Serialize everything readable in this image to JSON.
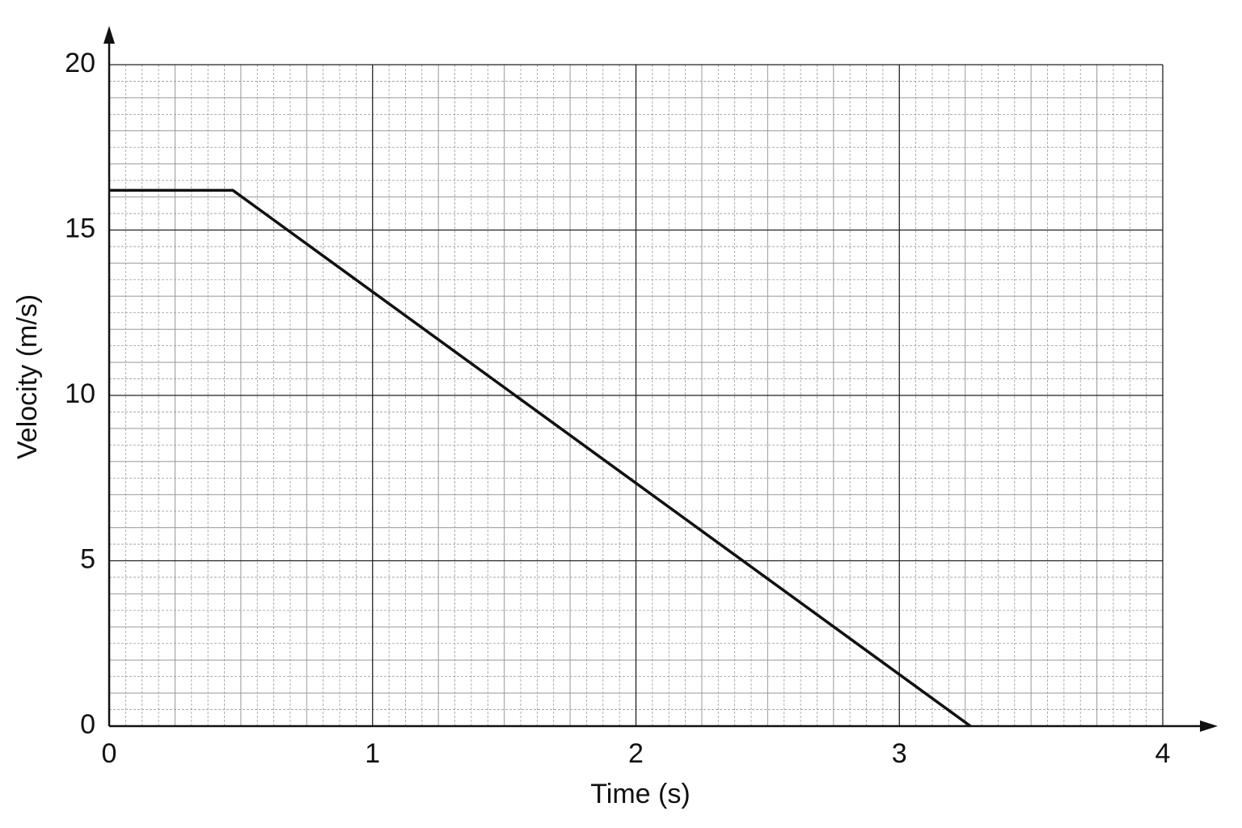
{
  "chart_data": {
    "type": "line",
    "xlabel": "Time (s)",
    "ylabel": "Velocity (m/s)",
    "x": [
      0,
      0.47,
      3.27
    ],
    "values": [
      16.2,
      16.2,
      0
    ],
    "color": "#111111",
    "xlim": [
      0,
      4
    ],
    "xticks": [
      0,
      1,
      2,
      3,
      4
    ],
    "ylim": [
      0,
      20
    ],
    "yticks": [
      0,
      5,
      10,
      15,
      20
    ],
    "grid": true
  }
}
